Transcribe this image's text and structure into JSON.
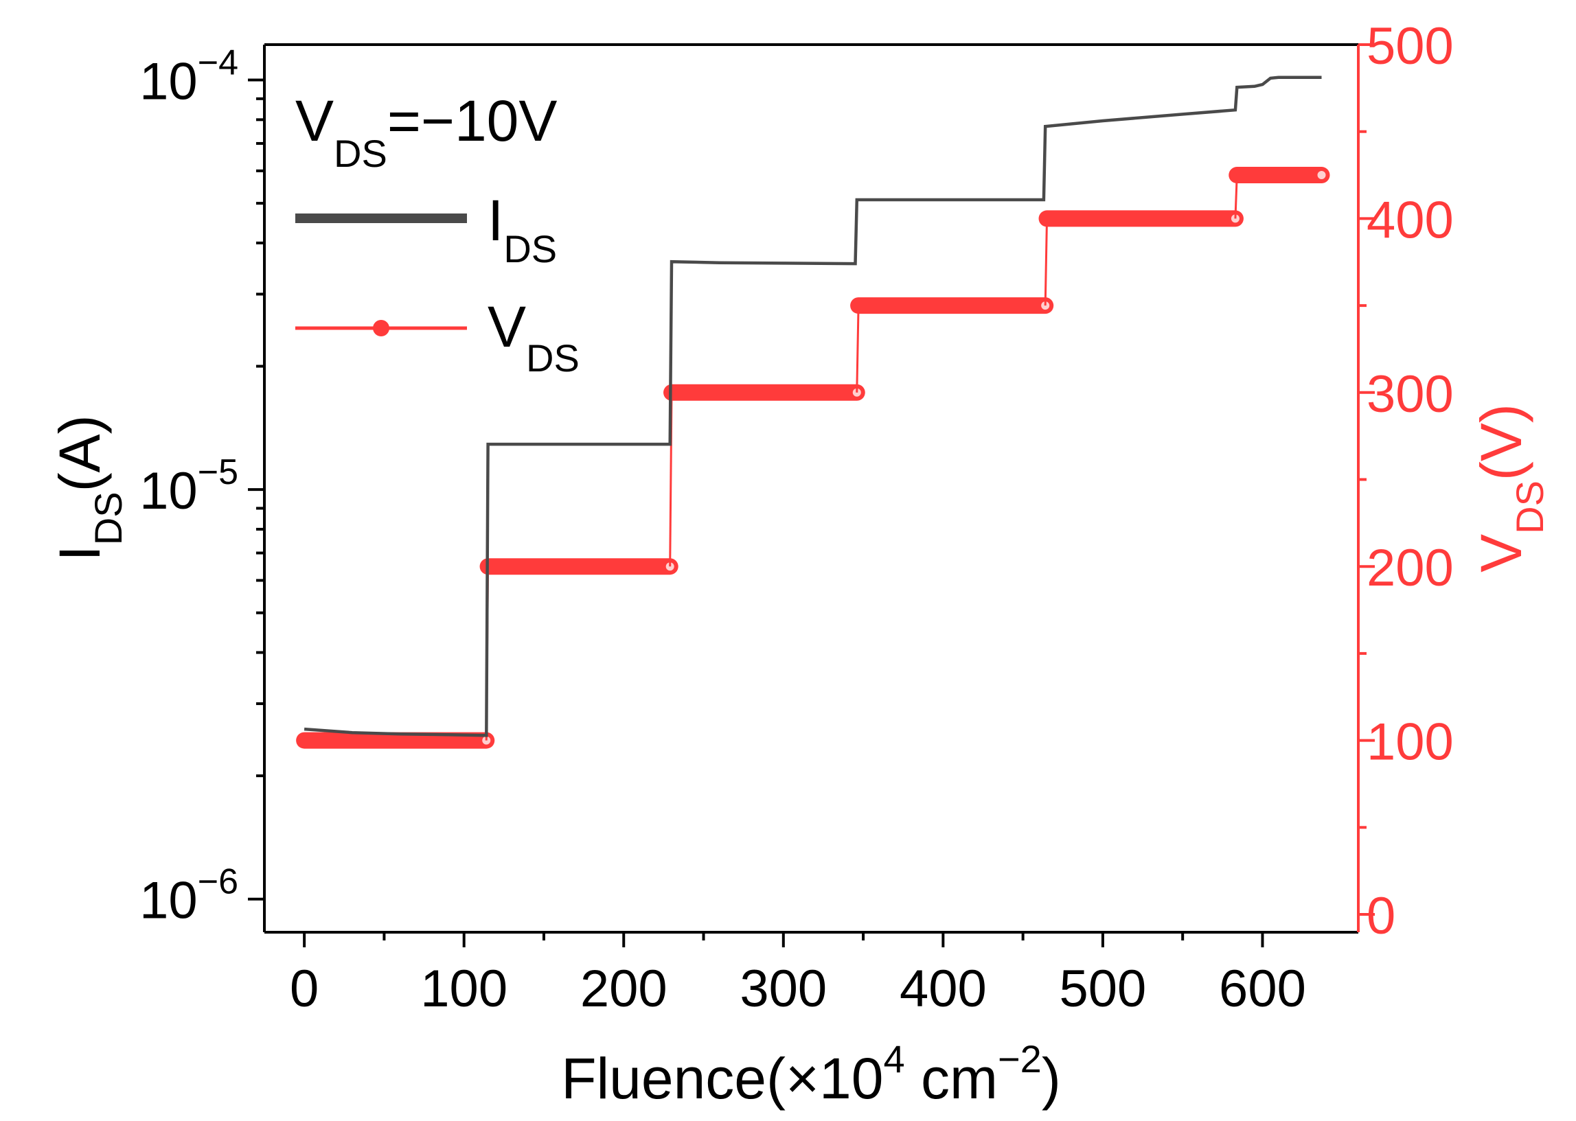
{
  "chart_data": {
    "type": "line",
    "x_axis": {
      "label": "Fluence(×10",
      "label_exp": "4",
      "label_unit": " cm",
      "label_unit_exp": "−2",
      "label_close": ")",
      "range": [
        -25,
        660
      ],
      "ticks": [
        0,
        100,
        200,
        300,
        400,
        500,
        600
      ],
      "tick_labels": [
        "0",
        "100",
        "200",
        "300",
        "400",
        "500",
        "600"
      ]
    },
    "y_left": {
      "label_main": "I",
      "label_sub": "DS",
      "label_unit": "(A)",
      "scale": "log",
      "range": [
        8.3e-07,
        0.000122
      ],
      "ticks": [
        1e-06,
        1e-05,
        0.0001
      ],
      "tick_bases": [
        "10",
        "10",
        "10"
      ],
      "tick_exps": [
        "−6",
        "−5",
        "−4"
      ]
    },
    "y_right": {
      "label_main": "V",
      "label_sub": "DS",
      "label_unit": "(V)",
      "scale": "linear",
      "range": [
        0,
        500
      ],
      "ticks": [
        0,
        100,
        200,
        300,
        400,
        500
      ],
      "tick_labels": [
        "0",
        "100",
        "200",
        "300",
        "400",
        "500"
      ]
    },
    "annotation": {
      "main": "V",
      "sub": "DS",
      "rest": "=−10V"
    },
    "legend": [
      {
        "main": "I",
        "sub": "DS",
        "style": "line",
        "color": "#4a4a4a"
      },
      {
        "main": "V",
        "sub": "DS",
        "style": "line-marker",
        "color": "#ff3b3b"
      }
    ],
    "series": [
      {
        "name": "IDS",
        "axis": "left",
        "color": "#4a4a4a",
        "x": [
          0,
          30,
          60,
          90,
          114,
          115,
          150,
          200,
          229,
          230,
          260,
          300,
          345,
          346,
          380,
          420,
          460,
          463,
          464,
          500,
          550,
          583,
          584,
          595,
          600,
          605,
          610,
          620,
          637
        ],
        "y": [
          2.6e-06,
          2.55e-06,
          2.53e-06,
          2.52e-06,
          2.51e-06,
          1.29e-05,
          1.29e-05,
          1.29e-05,
          1.29e-05,
          3.6e-05,
          3.58e-05,
          3.57e-05,
          3.56e-05,
          5.1e-05,
          5.1e-05,
          5.1e-05,
          5.1e-05,
          5.1e-05,
          7.7e-05,
          7.95e-05,
          8.25e-05,
          8.45e-05,
          9.6e-05,
          9.65e-05,
          9.75e-05,
          0.000101,
          0.0001015,
          0.0001015,
          0.0001015
        ]
      },
      {
        "name": "VDS",
        "axis": "right",
        "color": "#ff3b3b",
        "segments": [
          {
            "x_start": 0,
            "x_end": 114,
            "v": 100
          },
          {
            "x_start": 115,
            "x_end": 229,
            "v": 200
          },
          {
            "x_start": 230,
            "x_end": 346,
            "v": 300
          },
          {
            "x_start": 347,
            "x_end": 464,
            "v": 350
          },
          {
            "x_start": 465,
            "x_end": 583,
            "v": 400
          },
          {
            "x_start": 584,
            "x_end": 637,
            "v": 425
          }
        ]
      }
    ]
  }
}
